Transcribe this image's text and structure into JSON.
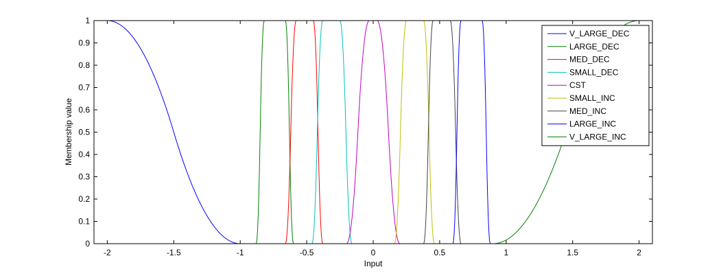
{
  "chart_data": {
    "type": "line",
    "title": "",
    "xlabel": "Input",
    "ylabel": "Membership value",
    "xlim": [
      -2.1,
      2.1
    ],
    "ylim": [
      0,
      1
    ],
    "xticks": [
      -2,
      -1.5,
      -1,
      -0.5,
      0,
      0.5,
      1,
      1.5,
      2
    ],
    "xtick_labels": [
      "-2",
      "-1.5",
      "-1",
      "-0.5",
      "0",
      "0.5",
      "1",
      "1.5",
      "2"
    ],
    "yticks": [
      0,
      0.1,
      0.2,
      0.3,
      0.4,
      0.5,
      0.6,
      0.7,
      0.8,
      0.9,
      1
    ],
    "ytick_labels": [
      "0",
      "0.1",
      "0.2",
      "0.3",
      "0.4",
      "0.5",
      "0.6",
      "0.7",
      "0.8",
      "0.9",
      "1"
    ],
    "grid": false,
    "legend_position": "top-right",
    "series": [
      {
        "name": "V_LARGE_DEC",
        "color": "#0000ff",
        "shape": "zmf",
        "params": [
          -2,
          -1
        ]
      },
      {
        "name": "LARGE_DEC",
        "color": "#008000",
        "shape": "pimf",
        "params": [
          -0.88,
          -0.82,
          -0.66,
          -0.6
        ]
      },
      {
        "name": "MED_DEC",
        "color": "#ff0000",
        "shape": "pimf",
        "params": [
          -0.66,
          -0.58,
          -0.45,
          -0.38
        ]
      },
      {
        "name": "SMALL_DEC",
        "color": "#00bfbf",
        "shape": "pimf",
        "params": [
          -0.46,
          -0.38,
          -0.25,
          -0.16
        ]
      },
      {
        "name": "CST",
        "color": "#bf00bf",
        "shape": "pimf",
        "params": [
          -0.2,
          -0.03,
          0.03,
          0.2
        ]
      },
      {
        "name": "SMALL_INC",
        "color": "#bfbf00",
        "shape": "pimf",
        "params": [
          0.16,
          0.25,
          0.38,
          0.46
        ]
      },
      {
        "name": "MED_INC",
        "color": "#404040",
        "shape": "pimf",
        "params": [
          0.38,
          0.45,
          0.58,
          0.66
        ]
      },
      {
        "name": "LARGE_INC",
        "color": "#0000ff",
        "shape": "pimf",
        "params": [
          0.6,
          0.66,
          0.82,
          0.88
        ]
      },
      {
        "name": "V_LARGE_INC",
        "color": "#008000",
        "shape": "smf",
        "params": [
          0.9,
          2
        ]
      }
    ]
  }
}
